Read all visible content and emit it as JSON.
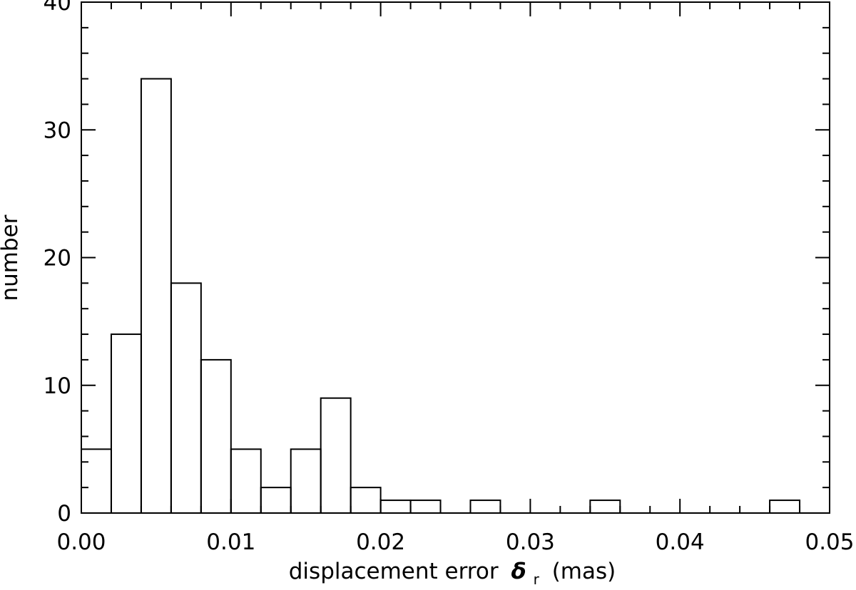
{
  "chart_data": {
    "type": "bar",
    "title": "",
    "xlabel": "displacement error",
    "xlabel_symbol": "δ",
    "xlabel_subscript": "r",
    "xlabel_units": "(mas)",
    "ylabel": "number",
    "xlim": [
      0.0,
      0.05
    ],
    "ylim": [
      0,
      40
    ],
    "x_ticks": [
      "0.00",
      "0.01",
      "0.02",
      "0.03",
      "0.04",
      "0.05"
    ],
    "y_ticks": [
      "0",
      "10",
      "20",
      "30",
      "40"
    ],
    "bin_width": 0.002,
    "bins": [
      {
        "x0": 0.0,
        "x1": 0.002,
        "count": 5
      },
      {
        "x0": 0.002,
        "x1": 0.004,
        "count": 14
      },
      {
        "x0": 0.004,
        "x1": 0.006,
        "count": 34
      },
      {
        "x0": 0.006,
        "x1": 0.008,
        "count": 18
      },
      {
        "x0": 0.008,
        "x1": 0.01,
        "count": 12
      },
      {
        "x0": 0.01,
        "x1": 0.012,
        "count": 5
      },
      {
        "x0": 0.012,
        "x1": 0.014,
        "count": 2
      },
      {
        "x0": 0.014,
        "x1": 0.016,
        "count": 5
      },
      {
        "x0": 0.016,
        "x1": 0.018,
        "count": 9
      },
      {
        "x0": 0.018,
        "x1": 0.02,
        "count": 2
      },
      {
        "x0": 0.02,
        "x1": 0.022,
        "count": 1
      },
      {
        "x0": 0.022,
        "x1": 0.024,
        "count": 1
      },
      {
        "x0": 0.026,
        "x1": 0.028,
        "count": 1
      },
      {
        "x0": 0.034,
        "x1": 0.036,
        "count": 1
      },
      {
        "x0": 0.046,
        "x1": 0.048,
        "count": 1
      }
    ],
    "grid": false,
    "style": "outline-histogram"
  }
}
